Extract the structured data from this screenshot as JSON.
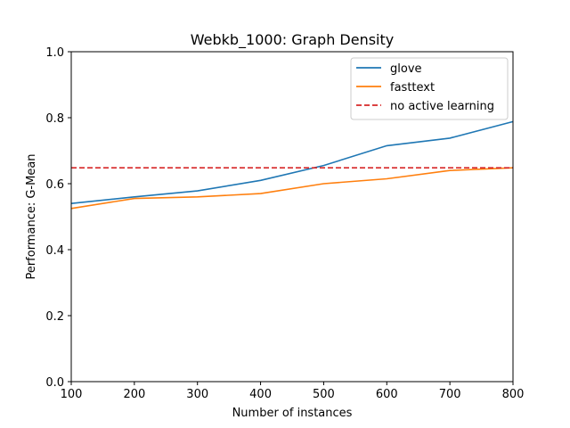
{
  "chart_data": {
    "type": "line",
    "title": "Webkb_1000: Graph Density",
    "xlabel": "Number of instances",
    "ylabel": "Performance: G-Mean",
    "xlim": [
      100,
      800
    ],
    "ylim": [
      0.0,
      1.0
    ],
    "xticks": [
      100,
      200,
      300,
      400,
      500,
      600,
      700,
      800
    ],
    "yticks": [
      0.0,
      0.2,
      0.4,
      0.6,
      0.8,
      1.0
    ],
    "ytick_labels": [
      "0.0",
      "0.2",
      "0.4",
      "0.6",
      "0.8",
      "1.0"
    ],
    "x": [
      100,
      200,
      300,
      400,
      500,
      600,
      700,
      800
    ],
    "series": [
      {
        "name": "glove",
        "color": "#1f77b4",
        "style": "solid",
        "values": [
          0.54,
          0.56,
          0.578,
          0.61,
          0.655,
          0.715,
          0.738,
          0.788
        ]
      },
      {
        "name": "fasttext",
        "color": "#ff7f0e",
        "style": "solid",
        "values": [
          0.525,
          0.555,
          0.56,
          0.57,
          0.6,
          0.615,
          0.64,
          0.648
        ]
      },
      {
        "name": "no active learning",
        "color": "#d62728",
        "style": "dashed",
        "values": [
          0.648,
          0.648,
          0.648,
          0.648,
          0.648,
          0.648,
          0.648,
          0.648
        ]
      }
    ],
    "legend": "top-right",
    "grid": false
  }
}
